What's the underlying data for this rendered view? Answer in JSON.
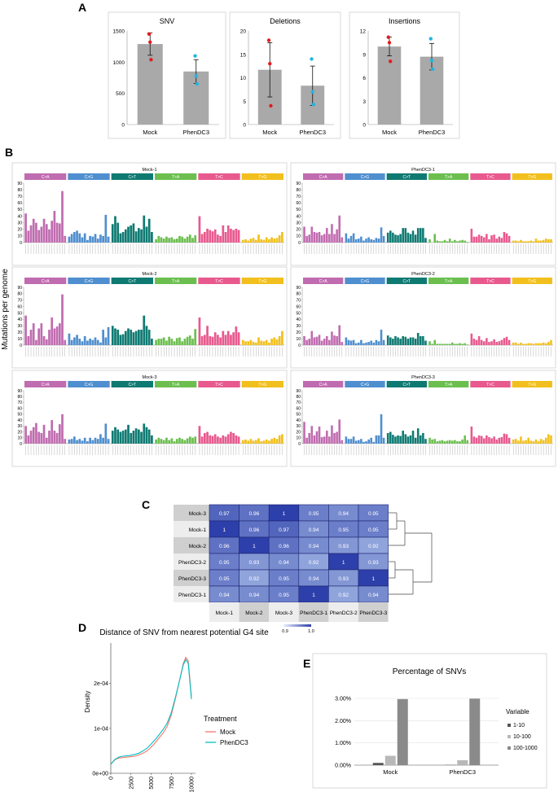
{
  "panel_labels": [
    "A",
    "B",
    "C",
    "D",
    "E"
  ],
  "colors": {
    "CA": "#c06cb0",
    "CG": "#4f8fcf",
    "CT": "#0f7a72",
    "TA": "#6cbf4f",
    "TC": "#e85a8e",
    "TG": "#f2c01e",
    "bar_gray": "#a9a9a9",
    "mock_dot": "#e41a1c",
    "phen_dot": "#22b5e0",
    "heat_low": "#a9bde8",
    "heat_high": "#2d3faa"
  },
  "panelA": {
    "charts": [
      {
        "title": "SNV",
        "yticks": [
          "0",
          "500",
          "1000",
          "1500"
        ],
        "ymax": 1500,
        "categories": [
          "Mock",
          "PhenDC3"
        ],
        "means": [
          1290,
          850
        ],
        "errors": [
          180,
          190
        ],
        "points": [
          [
            1450,
            1320,
            1040
          ],
          [
            1100,
            780,
            650
          ]
        ]
      },
      {
        "title": "Deletions",
        "yticks": [
          "0",
          "5",
          "10",
          "15",
          "20"
        ],
        "ymax": 20,
        "categories": [
          "Mock",
          "PhenDC3"
        ],
        "means": [
          11.7,
          8.3
        ],
        "errors": [
          5.8,
          4.2
        ],
        "points": [
          [
            18,
            13,
            4
          ],
          [
            14,
            7,
            4.3
          ]
        ]
      },
      {
        "title": "Insertions",
        "yticks": [
          "0",
          "3",
          "6",
          "9",
          "12"
        ],
        "ymax": 12,
        "categories": [
          "Mock",
          "PhenDC3"
        ],
        "means": [
          10,
          8.7
        ],
        "errors": [
          1.2,
          1.7
        ],
        "points": [
          [
            11.2,
            10.5,
            8.1
          ],
          [
            11,
            8.2,
            7.1
          ]
        ]
      }
    ]
  },
  "panelB": {
    "ylabel": "Mutations per genome",
    "categories": [
      "C>A",
      "C>G",
      "C>T",
      "T>A",
      "T>C",
      "T>G"
    ],
    "ymax": 90,
    "yticks": [
      "0",
      "10",
      "20",
      "30",
      "40",
      "50",
      "60",
      "70",
      "80",
      "90"
    ],
    "samples": [
      {
        "name": "Mock-1",
        "values": [
          [
            44,
            18,
            26,
            36,
            30,
            19,
            24,
            36,
            28,
            20,
            33,
            48,
            30,
            29,
            78,
            10
          ],
          [
            9,
            13,
            16,
            18,
            14,
            8,
            14,
            4,
            10,
            9,
            13,
            6,
            12,
            10,
            42,
            9
          ],
          [
            28,
            40,
            30,
            14,
            16,
            20,
            24,
            26,
            29,
            17,
            22,
            20,
            41,
            24,
            36,
            16
          ],
          [
            5,
            10,
            8,
            6,
            9,
            7,
            8,
            5,
            6,
            10,
            9,
            6,
            9,
            12,
            7,
            11
          ],
          [
            40,
            13,
            16,
            21,
            19,
            17,
            20,
            12,
            10,
            26,
            16,
            26,
            21,
            19,
            21,
            19
          ],
          [
            4,
            5,
            3,
            6,
            7,
            4,
            12,
            5,
            4,
            8,
            5,
            8,
            6,
            7,
            11,
            16
          ]
        ]
      },
      {
        "name": "PhenDC3-1",
        "values": [
          [
            24,
            10,
            12,
            24,
            16,
            15,
            16,
            11,
            13,
            22,
            13,
            28,
            13,
            20,
            41,
            8
          ],
          [
            14,
            6,
            10,
            14,
            5,
            6,
            9,
            3,
            6,
            8,
            5,
            4,
            7,
            6,
            23,
            10
          ],
          [
            15,
            18,
            15,
            12,
            11,
            13,
            22,
            22,
            15,
            13,
            18,
            12,
            22,
            22,
            22,
            7
          ],
          [
            5,
            0,
            13,
            3,
            2,
            2,
            4,
            2,
            6,
            2,
            4,
            2,
            3,
            4,
            3,
            1
          ],
          [
            21,
            9,
            9,
            12,
            10,
            8,
            13,
            5,
            11,
            12,
            6,
            9,
            7,
            16,
            14,
            10
          ],
          [
            3,
            3,
            2,
            4,
            2,
            2,
            2,
            3,
            2,
            6,
            3,
            3,
            4,
            6,
            5,
            5
          ]
        ]
      },
      {
        "name": "Mock-2",
        "values": [
          [
            46,
            14,
            24,
            34,
            8,
            26,
            34,
            14,
            9,
            24,
            43,
            26,
            29,
            34,
            79,
            8
          ],
          [
            18,
            8,
            12,
            16,
            10,
            6,
            14,
            7,
            10,
            8,
            12,
            8,
            4,
            24,
            12,
            28
          ],
          [
            30,
            26,
            24,
            16,
            17,
            22,
            26,
            24,
            20,
            22,
            24,
            24,
            46,
            30,
            24,
            10
          ],
          [
            8,
            10,
            10,
            12,
            7,
            13,
            10,
            6,
            11,
            12,
            6,
            10,
            13,
            15,
            10,
            25
          ],
          [
            43,
            14,
            16,
            30,
            14,
            13,
            20,
            16,
            12,
            22,
            16,
            22,
            16,
            20,
            29,
            20
          ],
          [
            8,
            6,
            6,
            8,
            5,
            4,
            12,
            7,
            6,
            8,
            4,
            10,
            12,
            9,
            14,
            22
          ]
        ]
      },
      {
        "name": "PhenDC3-2",
        "values": [
          [
            14,
            8,
            10,
            22,
            12,
            13,
            16,
            7,
            10,
            14,
            8,
            21,
            15,
            14,
            31,
            5
          ],
          [
            12,
            8,
            7,
            8,
            3,
            4,
            8,
            3,
            4,
            5,
            7,
            4,
            8,
            6,
            24,
            8
          ],
          [
            15,
            12,
            10,
            14,
            12,
            10,
            14,
            13,
            10,
            12,
            12,
            10,
            19,
            14,
            14,
            7
          ],
          [
            6,
            2,
            8,
            2,
            2,
            2,
            2,
            2,
            2,
            4,
            2,
            2,
            3,
            2,
            3,
            1
          ],
          [
            18,
            10,
            8,
            14,
            8,
            6,
            11,
            5,
            6,
            9,
            5,
            6,
            8,
            11,
            13,
            8
          ],
          [
            4,
            4,
            2,
            4,
            2,
            2,
            3,
            3,
            2,
            3,
            3,
            3,
            4,
            3,
            5,
            8
          ]
        ]
      },
      {
        "name": "Mock-3",
        "values": [
          [
            30,
            14,
            22,
            28,
            35,
            20,
            18,
            32,
            10,
            22,
            40,
            22,
            18,
            33,
            50,
            8
          ],
          [
            7,
            8,
            12,
            6,
            8,
            5,
            10,
            4,
            10,
            6,
            10,
            8,
            16,
            10,
            34,
            8
          ],
          [
            22,
            28,
            24,
            20,
            22,
            24,
            32,
            18,
            22,
            26,
            24,
            20,
            34,
            28,
            24,
            14
          ],
          [
            7,
            10,
            8,
            6,
            10,
            6,
            9,
            4,
            8,
            10,
            8,
            6,
            9,
            12,
            10,
            12
          ],
          [
            30,
            12,
            18,
            20,
            14,
            13,
            16,
            12,
            10,
            14,
            12,
            16,
            20,
            18,
            14,
            12
          ],
          [
            6,
            7,
            5,
            8,
            5,
            6,
            9,
            4,
            5,
            7,
            5,
            8,
            10,
            8,
            14,
            16
          ]
        ]
      },
      {
        "name": "PhenDC3-3",
        "values": [
          [
            37,
            10,
            18,
            30,
            14,
            21,
            29,
            11,
            12,
            22,
            12,
            31,
            18,
            20,
            41,
            6
          ],
          [
            12,
            8,
            8,
            12,
            5,
            6,
            8,
            3,
            4,
            7,
            10,
            3,
            14,
            14,
            50,
            10
          ],
          [
            18,
            20,
            15,
            12,
            14,
            13,
            22,
            16,
            12,
            14,
            22,
            10,
            26,
            14,
            18,
            8
          ],
          [
            10,
            7,
            8,
            4,
            5,
            6,
            4,
            5,
            6,
            5,
            6,
            4,
            4,
            7,
            14,
            6
          ],
          [
            29,
            12,
            10,
            14,
            13,
            9,
            14,
            11,
            9,
            12,
            7,
            10,
            11,
            17,
            16,
            10
          ],
          [
            7,
            8,
            5,
            12,
            5,
            6,
            10,
            5,
            4,
            7,
            4,
            8,
            6,
            10,
            16,
            14
          ]
        ]
      }
    ]
  },
  "panelC": {
    "rows": [
      "Mock-3",
      "Mock-1",
      "Mock-2",
      "PhenDC3-2",
      "PhenDC3-3",
      "PhenDC3-1"
    ],
    "cols": [
      "Mock-1",
      "Mock-2",
      "Mock-3",
      "PhenDC3-1",
      "PhenDC3-2",
      "PhenDC3-3"
    ],
    "values": [
      [
        0.97,
        0.96,
        1,
        0.95,
        0.94,
        0.95
      ],
      [
        1,
        0.96,
        0.97,
        0.94,
        0.95,
        0.95
      ],
      [
        0.96,
        1,
        0.96,
        0.94,
        0.93,
        0.92
      ],
      [
        0.95,
        0.93,
        0.94,
        0.92,
        1,
        0.93
      ],
      [
        0.95,
        0.92,
        0.95,
        0.94,
        0.93,
        1
      ],
      [
        0.94,
        0.94,
        0.95,
        1,
        0.92,
        0.94
      ]
    ],
    "legend_min": "0.9",
    "legend_max": "1.0"
  },
  "panelD": {
    "title": "Distance of SNV from nearest potential G4 site",
    "ylabel": "Density",
    "yticks": [
      "0e+00",
      "1e-04",
      "2e-04"
    ],
    "xticks": [
      "0",
      "2500",
      "5000",
      "7500",
      "10000"
    ],
    "legend_title": "Treatment",
    "legend_items": [
      "Mock",
      "PhenDC3"
    ],
    "legend_colors": [
      "#f8766d",
      "#00bfc4"
    ],
    "x": [
      0,
      500,
      1000,
      1500,
      2000,
      2500,
      3000,
      3500,
      4000,
      4500,
      5000,
      5500,
      6000,
      6500,
      7000,
      7500,
      8000,
      8500,
      9000,
      9300,
      9600,
      10000
    ],
    "mock": [
      0.2,
      0.3,
      0.34,
      0.35,
      0.36,
      0.37,
      0.38,
      0.41,
      0.45,
      0.5,
      0.58,
      0.68,
      0.79,
      0.9,
      1.05,
      1.3,
      1.65,
      2.05,
      2.45,
      2.58,
      2.5,
      1.7
    ],
    "phen": [
      0.2,
      0.31,
      0.36,
      0.38,
      0.39,
      0.4,
      0.42,
      0.45,
      0.5,
      0.56,
      0.65,
      0.75,
      0.86,
      0.98,
      1.12,
      1.35,
      1.68,
      2.05,
      2.42,
      2.53,
      2.45,
      1.65
    ]
  },
  "panelE": {
    "title": "Percentage of SNVs",
    "yticks": [
      "0.00%",
      "1.00%",
      "2.00%",
      "3.00%"
    ],
    "ymax": 3.0,
    "categories": [
      "Mock",
      "PhenDC3"
    ],
    "legend_title": "Variable",
    "series": [
      {
        "name": "1-10",
        "values": [
          0.1,
          0.01
        ],
        "color": "#555555"
      },
      {
        "name": "10-100",
        "values": [
          0.42,
          0.22
        ],
        "color": "#b8b8b8"
      },
      {
        "name": "100-1000",
        "values": [
          2.97,
          2.99
        ],
        "color": "#8a8a8a"
      }
    ]
  }
}
